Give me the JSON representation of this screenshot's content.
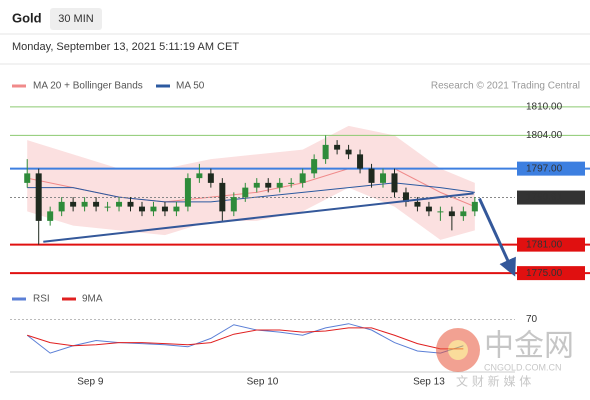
{
  "header": {
    "title": "Gold",
    "timeframe": "30 MIN",
    "date": "Monday, September 13, 2021 5:11:19 AM CET"
  },
  "watermark": {
    "name": "中金网",
    "site": "CNGOLD.COM.CN",
    "slogan": "文 财 新 媒 体"
  },
  "chart_data": [
    {
      "type": "candlestick",
      "credit": "Research © 2021 Trading Central",
      "x": [
        0,
        1,
        2,
        3,
        4,
        5,
        6,
        7,
        8,
        9,
        10,
        11,
        12,
        13,
        14,
        15,
        16,
        17,
        18,
        19,
        20,
        21,
        22,
        23,
        24,
        25,
        26,
        27,
        28,
        29,
        30,
        31,
        32,
        33,
        34,
        35,
        36,
        37,
        38,
        39
      ],
      "open": [
        1794,
        1796,
        1786,
        1788,
        1790,
        1789,
        1790,
        1789,
        1789,
        1790,
        1789,
        1788,
        1789,
        1788,
        1789,
        1795,
        1796,
        1794,
        1788,
        1791,
        1793,
        1794,
        1793,
        1794,
        1794,
        1796,
        1799,
        1802,
        1801,
        1800,
        1797,
        1794,
        1796,
        1792,
        1790,
        1789,
        1788,
        1788,
        1787,
        1788
      ],
      "high": [
        1799,
        1797,
        1789,
        1791,
        1791,
        1791,
        1791,
        1790,
        1791,
        1791,
        1790,
        1790,
        1790,
        1790,
        1796,
        1798,
        1797,
        1795,
        1792,
        1794,
        1795,
        1795,
        1795,
        1795,
        1797,
        1800,
        1804,
        1803,
        1802,
        1801,
        1798,
        1797,
        1797,
        1793,
        1791,
        1790,
        1789,
        1789,
        1789,
        1791
      ],
      "low": [
        1793,
        1781,
        1785,
        1787,
        1788,
        1788,
        1788,
        1788,
        1788,
        1788,
        1787,
        1787,
        1787,
        1787,
        1788,
        1794,
        1793,
        1786,
        1787,
        1790,
        1792,
        1792,
        1792,
        1793,
        1793,
        1795,
        1798,
        1800,
        1799,
        1796,
        1793,
        1793,
        1791,
        1789,
        1788,
        1787,
        1786,
        1784,
        1786,
        1787
      ],
      "close": [
        1796,
        1786,
        1788,
        1790,
        1789,
        1790,
        1789,
        1789,
        1790,
        1789,
        1788,
        1789,
        1788,
        1789,
        1795,
        1796,
        1794,
        1788,
        1791,
        1793,
        1794,
        1793,
        1794,
        1794,
        1796,
        1799,
        1802,
        1801,
        1800,
        1797,
        1794,
        1796,
        1792,
        1790,
        1789,
        1788,
        1788,
        1787,
        1788,
        1790
      ],
      "up_color": "#2e8b3a",
      "down_color": "#1f2a1f",
      "indicators": [
        {
          "name": "MA 20 + Bollinger Bands",
          "color": "#f08a8a",
          "band_color": "#fbe0e0",
          "x": [
            0,
            4,
            8,
            12,
            16,
            20,
            24,
            28,
            32,
            36,
            39
          ],
          "values": [
            1795,
            1793,
            1791,
            1790,
            1791,
            1792,
            1794,
            1797,
            1797,
            1792,
            1789
          ],
          "upper": [
            1803,
            1800,
            1797,
            1797,
            1799,
            1800,
            1801,
            1806,
            1804,
            1797,
            1794
          ],
          "lower": [
            1788,
            1785,
            1784,
            1783,
            1786,
            1786,
            1788,
            1793,
            1789,
            1782,
            1784
          ]
        },
        {
          "name": "MA 50",
          "color": "#2c5aa0",
          "x": [
            0,
            4,
            8,
            12,
            16,
            20,
            24,
            28,
            32,
            36,
            39
          ],
          "values": [
            1793,
            1793,
            1791,
            1790,
            1790,
            1791,
            1792,
            1793,
            1794,
            1793,
            1792
          ]
        }
      ],
      "levels": [
        {
          "value": 1810,
          "label": "1810.00",
          "color": "#8cc970",
          "text_color": "#4a9a2a",
          "style": "thin"
        },
        {
          "value": 1804,
          "label": "1804.00",
          "color": "#8cc970",
          "text_color": "#4a9a2a",
          "style": "thin"
        },
        {
          "value": 1797,
          "label": "1797.00",
          "color": "#3d7fe0",
          "text_color": "#ffffff",
          "style": "box"
        },
        {
          "value": 1790.91,
          "label": "1790.91",
          "color": "#333333",
          "text_color": "#ffffff",
          "style": "dotted"
        },
        {
          "value": 1781,
          "label": "1781.00",
          "color": "#e01010",
          "text_color": "#ffffff",
          "style": "box"
        },
        {
          "value": 1775,
          "label": "1775.00",
          "color": "#e01010",
          "text_color": "#ffffff",
          "style": "box"
        }
      ],
      "trendline": {
        "color": "#34589a",
        "x": [
          1.4,
          38.9
        ],
        "values": [
          1781.6,
          1791.8
        ]
      },
      "projection": {
        "color": "#34589a",
        "x": [
          39.4,
          42.3
        ],
        "values": [
          1790.7,
          1775.4
        ]
      },
      "xlim": [
        -1.5,
        42.5
      ],
      "ylim": [
        1772.5,
        1812.5
      ],
      "xticks": [
        {
          "value": 5.5,
          "label": "Sep 9"
        },
        {
          "value": 20.5,
          "label": "Sep 10"
        },
        {
          "value": 35,
          "label": "Sep 13"
        }
      ]
    },
    {
      "type": "line",
      "x": [
        0,
        2,
        4,
        6,
        8,
        10,
        12,
        14,
        16,
        18,
        20,
        22,
        24,
        26,
        28,
        30,
        32,
        34,
        36,
        38
      ],
      "series": [
        {
          "name": "RSI",
          "color": "#5b7fd6",
          "values": [
            55,
            38,
            45,
            50,
            48,
            47,
            46,
            44,
            52,
            65,
            60,
            58,
            55,
            62,
            66,
            60,
            48,
            40,
            38,
            45
          ]
        },
        {
          "name": "9MA",
          "color": "#e02020",
          "values": [
            55,
            48,
            45,
            46,
            48,
            48,
            47,
            46,
            48,
            56,
            60,
            60,
            58,
            59,
            62,
            62,
            55,
            47,
            42,
            42
          ]
        }
      ],
      "xlim": [
        -1.5,
        42.5
      ],
      "ylim": [
        20,
        80
      ],
      "yticks": [
        70
      ]
    }
  ]
}
